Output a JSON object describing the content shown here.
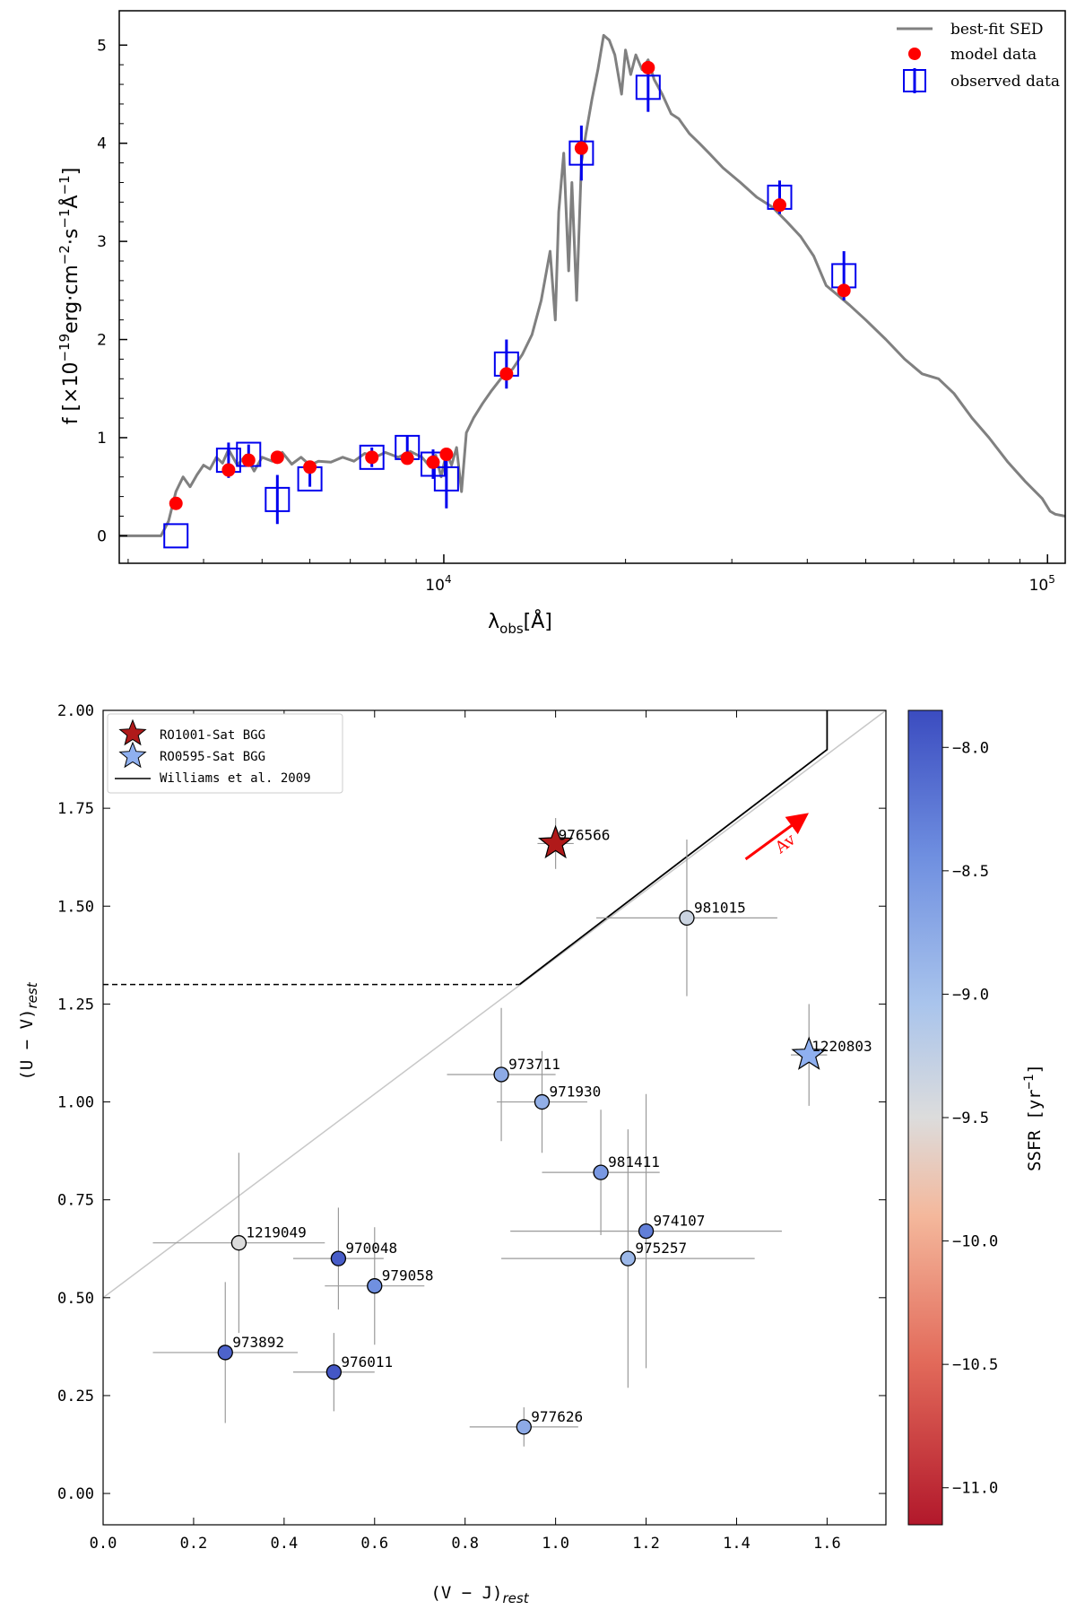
{
  "chart_data": [
    {
      "type": "scatter",
      "title": "",
      "xlabel": "λobs[Å]",
      "ylabel": "f [×10^-19 erg·cm^-2·s^-1·Å^-1]",
      "xscale": "log",
      "xlim": [
        2900,
        107000
      ],
      "ylim": [
        -0.28,
        5.35
      ],
      "yticks": [
        "0",
        "1",
        "2",
        "3",
        "4",
        "5"
      ],
      "xticks": [
        {
          "base": "10",
          "exp": "4",
          "value": 10000
        },
        {
          "base": "10",
          "exp": "5",
          "value": 100000
        }
      ],
      "legend": {
        "position": "top-right",
        "entries": [
          "best-fit SED",
          "model data",
          "observed data"
        ]
      },
      "colors": {
        "sed": "#808080",
        "model": "#ff0000",
        "observed": "#0000ee"
      },
      "sed_curve": {
        "name": "best-fit SED",
        "points": [
          [
            2900,
            0.0
          ],
          [
            3400,
            0.0
          ],
          [
            3500,
            0.15
          ],
          [
            3600,
            0.45
          ],
          [
            3700,
            0.6
          ],
          [
            3800,
            0.5
          ],
          [
            3900,
            0.62
          ],
          [
            4000,
            0.72
          ],
          [
            4100,
            0.68
          ],
          [
            4200,
            0.8
          ],
          [
            4300,
            0.74
          ],
          [
            4400,
            0.88
          ],
          [
            4550,
            0.72
          ],
          [
            4700,
            0.82
          ],
          [
            4850,
            0.66
          ],
          [
            5000,
            0.8
          ],
          [
            5200,
            0.76
          ],
          [
            5400,
            0.85
          ],
          [
            5600,
            0.73
          ],
          [
            5800,
            0.8
          ],
          [
            6000,
            0.72
          ],
          [
            6200,
            0.76
          ],
          [
            6500,
            0.75
          ],
          [
            6800,
            0.8
          ],
          [
            7100,
            0.76
          ],
          [
            7400,
            0.84
          ],
          [
            7700,
            0.8
          ],
          [
            8000,
            0.85
          ],
          [
            8400,
            0.8
          ],
          [
            8800,
            0.86
          ],
          [
            9200,
            0.8
          ],
          [
            9500,
            0.7
          ],
          [
            9700,
            0.82
          ],
          [
            9900,
            0.6
          ],
          [
            10100,
            0.85
          ],
          [
            10300,
            0.72
          ],
          [
            10500,
            0.9
          ],
          [
            10700,
            0.45
          ],
          [
            10900,
            1.05
          ],
          [
            11200,
            1.2
          ],
          [
            11600,
            1.35
          ],
          [
            12000,
            1.48
          ],
          [
            12500,
            1.62
          ],
          [
            13000,
            1.7
          ],
          [
            13500,
            1.85
          ],
          [
            14000,
            2.05
          ],
          [
            14500,
            2.4
          ],
          [
            15000,
            2.9
          ],
          [
            15300,
            2.2
          ],
          [
            15500,
            3.3
          ],
          [
            15800,
            3.9
          ],
          [
            16100,
            2.7
          ],
          [
            16300,
            3.6
          ],
          [
            16600,
            2.4
          ],
          [
            16900,
            3.8
          ],
          [
            17200,
            4.1
          ],
          [
            17600,
            4.45
          ],
          [
            18000,
            4.75
          ],
          [
            18400,
            5.1
          ],
          [
            18800,
            5.05
          ],
          [
            19200,
            4.9
          ],
          [
            19700,
            4.5
          ],
          [
            20000,
            4.95
          ],
          [
            20400,
            4.7
          ],
          [
            20800,
            4.9
          ],
          [
            21300,
            4.75
          ],
          [
            21800,
            4.85
          ],
          [
            22300,
            4.65
          ],
          [
            23000,
            4.5
          ],
          [
            23800,
            4.3
          ],
          [
            24500,
            4.25
          ],
          [
            25500,
            4.1
          ],
          [
            26500,
            4.0
          ],
          [
            27500,
            3.9
          ],
          [
            29000,
            3.75
          ],
          [
            31000,
            3.6
          ],
          [
            33000,
            3.45
          ],
          [
            35000,
            3.35
          ],
          [
            37000,
            3.2
          ],
          [
            39000,
            3.05
          ],
          [
            41000,
            2.85
          ],
          [
            43000,
            2.55
          ],
          [
            45000,
            2.45
          ],
          [
            47000,
            2.35
          ],
          [
            50000,
            2.2
          ],
          [
            54000,
            2.0
          ],
          [
            58000,
            1.8
          ],
          [
            62000,
            1.65
          ],
          [
            66000,
            1.6
          ],
          [
            70000,
            1.45
          ],
          [
            75000,
            1.2
          ],
          [
            80000,
            1.0
          ],
          [
            86000,
            0.75
          ],
          [
            92000,
            0.55
          ],
          [
            98000,
            0.38
          ],
          [
            101000,
            0.25
          ],
          [
            103000,
            0.22
          ],
          [
            107000,
            0.2
          ]
        ]
      },
      "model_data": [
        {
          "x": 3600,
          "y": 0.33
        },
        {
          "x": 4400,
          "y": 0.67
        },
        {
          "x": 4750,
          "y": 0.77
        },
        {
          "x": 5300,
          "y": 0.8
        },
        {
          "x": 6000,
          "y": 0.7
        },
        {
          "x": 7600,
          "y": 0.8
        },
        {
          "x": 8700,
          "y": 0.79
        },
        {
          "x": 9600,
          "y": 0.75
        },
        {
          "x": 10100,
          "y": 0.83
        },
        {
          "x": 12700,
          "y": 1.65
        },
        {
          "x": 16900,
          "y": 3.95
        },
        {
          "x": 21800,
          "y": 4.77
        },
        {
          "x": 36000,
          "y": 3.37
        },
        {
          "x": 46000,
          "y": 2.5
        }
      ],
      "observed_data": [
        {
          "x": 3600,
          "y": 0.0,
          "err": 0.0
        },
        {
          "x": 4400,
          "y": 0.77,
          "err": 0.18
        },
        {
          "x": 4750,
          "y": 0.83,
          "err": 0.1
        },
        {
          "x": 5300,
          "y": 0.37,
          "err": 0.25
        },
        {
          "x": 6000,
          "y": 0.58,
          "err": 0.08
        },
        {
          "x": 7600,
          "y": 0.8,
          "err": 0.1
        },
        {
          "x": 8700,
          "y": 0.9,
          "err": 0.12
        },
        {
          "x": 9600,
          "y": 0.73,
          "err": 0.15
        },
        {
          "x": 10100,
          "y": 0.58,
          "err": 0.3
        },
        {
          "x": 12700,
          "y": 1.75,
          "err": 0.25
        },
        {
          "x": 16900,
          "y": 3.9,
          "err": 0.28
        },
        {
          "x": 21800,
          "y": 4.57,
          "err": 0.25
        },
        {
          "x": 36000,
          "y": 3.45,
          "err": 0.17
        },
        {
          "x": 46000,
          "y": 2.65,
          "err": 0.25
        }
      ]
    },
    {
      "type": "scatter",
      "title": "",
      "xlabel": "(V − J)",
      "xlabel_sub": "rest",
      "ylabel": "(U − V)",
      "ylabel_sub": "rest",
      "xlim": [
        0.0,
        1.73
      ],
      "ylim": [
        -0.08,
        2.0
      ],
      "xticks": [
        "0.0",
        "0.2",
        "0.4",
        "0.6",
        "0.8",
        "1.0",
        "1.2",
        "1.4",
        "1.6"
      ],
      "yticks": [
        "0.00",
        "0.25",
        "0.50",
        "0.75",
        "1.00",
        "1.25",
        "1.50",
        "1.75",
        "2.00"
      ],
      "legend": {
        "position": "top-left",
        "entries": [
          "RO1001-Sat BGG",
          "RO0595-Sat BGG",
          "Williams et al. 2009"
        ]
      },
      "arrow_label": "Av",
      "arrow": {
        "from": [
          1.42,
          1.62
        ],
        "to": [
          1.55,
          1.73
        ]
      },
      "williams_line": [
        [
          0.0,
          1.3
        ],
        [
          0.92,
          1.3
        ],
        [
          1.6,
          1.9
        ],
        [
          1.6,
          2.0
        ]
      ],
      "diagonal_line": [
        [
          0.0,
          0.5
        ],
        [
          1.73,
          2.0
        ]
      ],
      "colorbar": {
        "label": "SSFR [yr^-1]",
        "label_exp": "-1",
        "range": [
          -11.15,
          -7.85
        ],
        "ticks": [
          "-8.0",
          "-8.5",
          "-9.0",
          "-9.5",
          "-10.0",
          "-10.5",
          "-11.0"
        ]
      },
      "stars": [
        {
          "id": "976566",
          "name": "RO1001-Sat BGG",
          "x": 1.0,
          "y": 1.66,
          "xerr": 0.04,
          "yerr": 0.065,
          "color": "#b01a1a"
        },
        {
          "id": "1220803",
          "name": "RO0595-Sat BGG",
          "x": 1.56,
          "y": 1.12,
          "xerr": 0.04,
          "yerr": 0.13,
          "color": "#8fb0f0"
        }
      ],
      "galaxies": [
        {
          "id": "981015",
          "x": 1.29,
          "y": 1.47,
          "xerr": 0.2,
          "yerr": 0.2,
          "ssfr": -9.35
        },
        {
          "id": "973711",
          "x": 0.88,
          "y": 1.07,
          "xerr": 0.12,
          "yerr": 0.17,
          "ssfr": -8.75
        },
        {
          "id": "971930",
          "x": 0.97,
          "y": 1.0,
          "xerr": 0.1,
          "yerr": 0.13,
          "ssfr": -8.8
        },
        {
          "id": "981411",
          "x": 1.1,
          "y": 0.82,
          "xerr": 0.13,
          "yerr": 0.16,
          "ssfr": -8.55
        },
        {
          "id": "974107",
          "x": 1.2,
          "y": 0.67,
          "xerr": 0.3,
          "yerr": 0.35,
          "ssfr": -8.3
        },
        {
          "id": "975257",
          "x": 1.16,
          "y": 0.6,
          "xerr": 0.28,
          "yerr": 0.33,
          "ssfr": -8.9
        },
        {
          "id": "1219049",
          "x": 0.3,
          "y": 0.64,
          "xerr": 0.19,
          "yerr": 0.23,
          "ssfr": -9.5
        },
        {
          "id": "970048",
          "x": 0.52,
          "y": 0.6,
          "xerr": 0.1,
          "yerr": 0.13,
          "ssfr": -8.0
        },
        {
          "id": "979058",
          "x": 0.6,
          "y": 0.53,
          "xerr": 0.11,
          "yerr": 0.15,
          "ssfr": -8.45
        },
        {
          "id": "973892",
          "x": 0.27,
          "y": 0.36,
          "xerr": 0.16,
          "yerr": 0.18,
          "ssfr": -8.05
        },
        {
          "id": "976011",
          "x": 0.51,
          "y": 0.31,
          "xerr": 0.09,
          "yerr": 0.1,
          "ssfr": -7.95
        },
        {
          "id": "977626",
          "x": 0.93,
          "y": 0.17,
          "xerr": 0.12,
          "yerr": 0.05,
          "ssfr": -8.75
        }
      ]
    }
  ]
}
